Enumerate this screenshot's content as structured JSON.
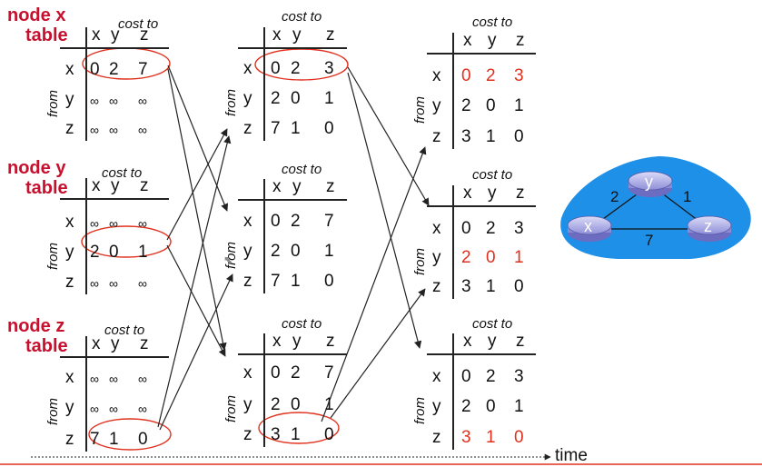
{
  "labels": {
    "cost_to": "cost to",
    "from": "from",
    "cols": [
      "x",
      "y",
      "z"
    ],
    "rows": [
      "x",
      "y",
      "z"
    ],
    "time": "time"
  },
  "nodes": {
    "x": {
      "title": "node x",
      "subtitle": "table"
    },
    "y": {
      "title": "node y",
      "subtitle": "table"
    },
    "z": {
      "title": "node z",
      "subtitle": "table"
    }
  },
  "tables": {
    "t0x": [
      [
        "0",
        "2",
        "7"
      ],
      [
        "∞",
        "∞",
        "∞"
      ],
      [
        "∞",
        "∞",
        "∞"
      ]
    ],
    "t0y": [
      [
        "∞",
        "∞",
        "∞"
      ],
      [
        "2",
        "0",
        "1"
      ],
      [
        "∞",
        "∞",
        "∞"
      ]
    ],
    "t0z": [
      [
        "∞",
        "∞",
        "∞"
      ],
      [
        "∞",
        "∞",
        "∞"
      ],
      [
        "7",
        "1",
        "0"
      ]
    ],
    "t1x": [
      [
        "0",
        "2",
        "3"
      ],
      [
        "2",
        "0",
        "1"
      ],
      [
        "7",
        "1",
        "0"
      ]
    ],
    "t1y": [
      [
        "0",
        "2",
        "7"
      ],
      [
        "2",
        "0",
        "1"
      ],
      [
        "7",
        "1",
        "0"
      ]
    ],
    "t1z": [
      [
        "0",
        "2",
        "7"
      ],
      [
        "2",
        "0",
        "1"
      ],
      [
        "3",
        "1",
        "0"
      ]
    ],
    "t2x": [
      [
        "0",
        "2",
        "3"
      ],
      [
        "2",
        "0",
        "1"
      ],
      [
        "3",
        "1",
        "0"
      ]
    ],
    "t2y": [
      [
        "0",
        "2",
        "3"
      ],
      [
        "2",
        "0",
        "1"
      ],
      [
        "3",
        "1",
        "0"
      ]
    ],
    "t2z": [
      [
        "0",
        "2",
        "3"
      ],
      [
        "2",
        "0",
        "1"
      ],
      [
        "3",
        "1",
        "0"
      ]
    ]
  },
  "network": {
    "nodes": [
      "x",
      "y",
      "z"
    ],
    "edges": [
      {
        "from": "x",
        "to": "y",
        "cost": "2"
      },
      {
        "from": "y",
        "to": "z",
        "cost": "1"
      },
      {
        "from": "x",
        "to": "z",
        "cost": "7"
      }
    ]
  },
  "colors": {
    "highlight": "#e0311f",
    "title": "#c8102e",
    "cloud": "#1e90e8",
    "router": "#b8b8ee"
  }
}
